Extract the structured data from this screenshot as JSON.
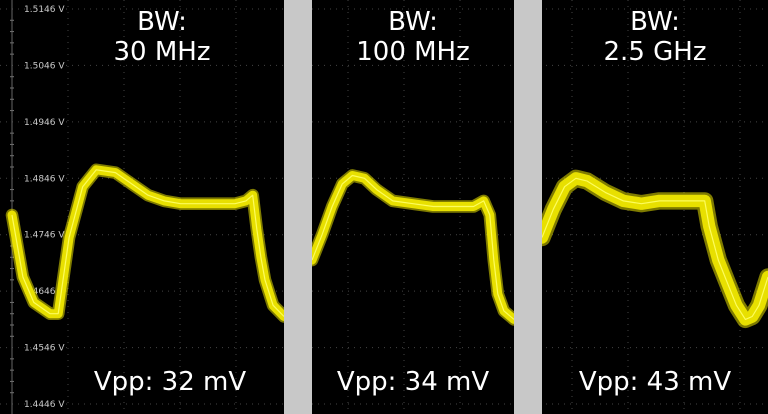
{
  "chart_data": {
    "type": "line",
    "title": "",
    "xlabel": "",
    "ylabel": "",
    "ylim": [
      1.4446,
      1.5146
    ],
    "y_ticks": [
      "1.5146 V",
      "1.5046 V",
      "1.4946 V",
      "1.4846 V",
      "1.4746 V",
      "1.4646 V",
      "1.4546 V",
      "1.4446 V"
    ],
    "grid": true,
    "colors": {
      "trace": "#e8e000",
      "trace_glow": "#ffff66",
      "separator": "#c8c8c8",
      "grid": "#444444"
    },
    "panels": [
      {
        "bandwidth_line1": "BW:",
        "bandwidth_line2": "30 MHz",
        "vpp_text": "Vpp: 32 mV",
        "thickness_v": 0.0016,
        "x": [
          0,
          0.04,
          0.08,
          0.14,
          0.17,
          0.21,
          0.26,
          0.31,
          0.38,
          0.44,
          0.5,
          0.56,
          0.62,
          0.66,
          0.7,
          0.76,
          0.82,
          0.86,
          0.885,
          0.9,
          0.915,
          0.93,
          0.96,
          1.0
        ],
        "y": [
          1.4781,
          1.4671,
          1.4626,
          1.4606,
          1.4606,
          1.4741,
          1.4831,
          1.4861,
          1.4856,
          1.4836,
          1.4816,
          1.4806,
          1.4801,
          1.4801,
          1.4801,
          1.4801,
          1.4801,
          1.4806,
          1.4816,
          1.4756,
          1.4706,
          1.4666,
          1.4621,
          1.4601
        ]
      },
      {
        "bandwidth_line1": "BW:",
        "bandwidth_line2": "100 MHz",
        "vpp_text": "Vpp: 34 mV",
        "thickness_v": 0.0016,
        "x": [
          0,
          0.05,
          0.1,
          0.15,
          0.2,
          0.26,
          0.32,
          0.4,
          0.5,
          0.6,
          0.7,
          0.8,
          0.85,
          0.88,
          0.9,
          0.92,
          0.95,
          1.0
        ],
        "y": [
          1.4701,
          1.4746,
          1.4796,
          1.4836,
          1.4851,
          1.4846,
          1.4826,
          1.4806,
          1.4801,
          1.4796,
          1.4796,
          1.4796,
          1.4806,
          1.4781,
          1.4701,
          1.4641,
          1.4611,
          1.4596
        ]
      },
      {
        "bandwidth_line1": "BW:",
        "bandwidth_line2": "2.5 GHz",
        "vpp_text": "Vpp: 43 mV",
        "thickness_v": 0.0022,
        "x": [
          0,
          0.05,
          0.1,
          0.15,
          0.2,
          0.28,
          0.36,
          0.44,
          0.52,
          0.6,
          0.68,
          0.72,
          0.74,
          0.78,
          0.82,
          0.86,
          0.9,
          0.93,
          0.96,
          1.0
        ],
        "y": [
          1.4741,
          1.4791,
          1.4831,
          1.4846,
          1.4841,
          1.4821,
          1.4806,
          1.4801,
          1.4806,
          1.4806,
          1.4806,
          1.4806,
          1.4761,
          1.4701,
          1.4661,
          1.4621,
          1.4596,
          1.4601,
          1.4621,
          1.4671
        ]
      }
    ]
  }
}
